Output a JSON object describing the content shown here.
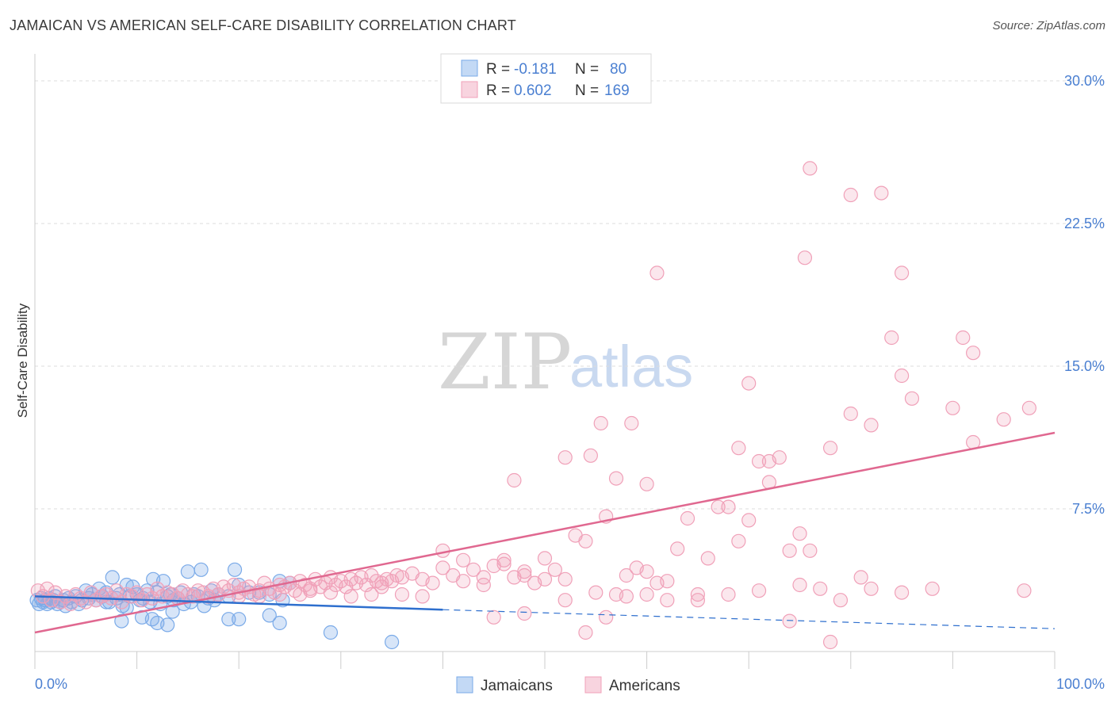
{
  "title": "JAMAICAN VS AMERICAN SELF-CARE DISABILITY CORRELATION CHART",
  "source": "Source: ZipAtlas.com",
  "watermark": {
    "part1": "ZIP",
    "part2": "atlas"
  },
  "colors": {
    "jamaicans": "#7aaae8",
    "jamaicans_fill": "rgba(122,170,232,0.30)",
    "jamaicans_line": "#2e6fce",
    "americans": "#f0a0b8",
    "americans_fill": "rgba(240,160,184,0.25)",
    "americans_line": "#e06890",
    "tick": "#4a7fd1",
    "grid": "#dddddd"
  },
  "legend_top": {
    "rows": [
      {
        "r_label": "R = ",
        "r_value": "-0.181",
        "n_label": "N = ",
        "n_value": "80"
      },
      {
        "r_label": "R = ",
        "r_value": "0.602",
        "n_label": "N = ",
        "n_value": "169"
      }
    ]
  },
  "chart_data": {
    "type": "scatter",
    "title": "JAMAICAN VS AMERICAN SELF-CARE DISABILITY CORRELATION CHART",
    "xlabel": "",
    "ylabel": "Self-Care Disability",
    "xlim": [
      0,
      100
    ],
    "ylim": [
      0,
      31
    ],
    "x_tick_labels": [
      "0.0%",
      "100.0%"
    ],
    "y_ticks": [
      7.5,
      15.0,
      22.5,
      30.0
    ],
    "y_tick_labels": [
      "7.5%",
      "15.0%",
      "22.5%",
      "30.0%"
    ],
    "grid": true,
    "legend": "top-center and bottom",
    "series": [
      {
        "name": "Jamaicans",
        "trend": {
          "x0": 0,
          "y0": 2.9,
          "x1": 40,
          "y1": 2.2,
          "dashed_to_x": 100,
          "dashed_to_y": 1.2
        },
        "points": [
          [
            0.2,
            2.7
          ],
          [
            0.4,
            2.5
          ],
          [
            0.6,
            2.8
          ],
          [
            0.8,
            2.6
          ],
          [
            1.0,
            2.7
          ],
          [
            1.2,
            2.5
          ],
          [
            1.4,
            2.8
          ],
          [
            1.6,
            2.6
          ],
          [
            1.8,
            2.7
          ],
          [
            2.0,
            2.9
          ],
          [
            2.2,
            2.5
          ],
          [
            2.5,
            2.6
          ],
          [
            2.8,
            2.7
          ],
          [
            3.0,
            2.4
          ],
          [
            3.3,
            2.8
          ],
          [
            3.6,
            2.6
          ],
          [
            4.0,
            2.9
          ],
          [
            4.3,
            2.5
          ],
          [
            4.6,
            2.7
          ],
          [
            5.0,
            3.2
          ],
          [
            5.3,
            2.8
          ],
          [
            5.6,
            3.0
          ],
          [
            6.0,
            2.7
          ],
          [
            6.3,
            3.3
          ],
          [
            6.6,
            2.9
          ],
          [
            7.0,
            3.1
          ],
          [
            7.3,
            2.6
          ],
          [
            7.6,
            3.9
          ],
          [
            8.0,
            2.8
          ],
          [
            8.3,
            3.0
          ],
          [
            8.6,
            2.4
          ],
          [
            9.0,
            3.5
          ],
          [
            9.3,
            2.9
          ],
          [
            9.6,
            3.4
          ],
          [
            10.0,
            3.0
          ],
          [
            10.3,
            2.7
          ],
          [
            10.6,
            2.8
          ],
          [
            11.0,
            3.2
          ],
          [
            11.3,
            2.6
          ],
          [
            11.6,
            3.8
          ],
          [
            12.0,
            3.1
          ],
          [
            12.3,
            2.5
          ],
          [
            12.6,
            3.7
          ],
          [
            13.0,
            2.9
          ],
          [
            13.3,
            3.0
          ],
          [
            13.6,
            2.7
          ],
          [
            14.0,
            2.8
          ],
          [
            14.3,
            3.1
          ],
          [
            14.6,
            2.5
          ],
          [
            15.0,
            4.2
          ],
          [
            15.3,
            2.6
          ],
          [
            15.6,
            3.0
          ],
          [
            16.0,
            2.9
          ],
          [
            16.3,
            4.3
          ],
          [
            16.6,
            2.4
          ],
          [
            17.0,
            2.8
          ],
          [
            17.3,
            3.2
          ],
          [
            17.6,
            2.7
          ],
          [
            18.0,
            3.0
          ],
          [
            19.0,
            2.9
          ],
          [
            19.6,
            4.3
          ],
          [
            20.0,
            3.5
          ],
          [
            21.0,
            3.1
          ],
          [
            22.0,
            3.1
          ],
          [
            23.0,
            3.0
          ],
          [
            24.0,
            3.7
          ],
          [
            24.3,
            2.7
          ],
          [
            25.0,
            3.6
          ],
          [
            8.5,
            1.6
          ],
          [
            10.5,
            1.8
          ],
          [
            11.5,
            1.7
          ],
          [
            12.0,
            1.5
          ],
          [
            13.0,
            1.4
          ],
          [
            13.5,
            2.1
          ],
          [
            9.0,
            2.3
          ],
          [
            19.0,
            1.7
          ],
          [
            20.0,
            1.7
          ],
          [
            23.0,
            1.9
          ],
          [
            24.0,
            1.5
          ],
          [
            29.0,
            1.0
          ],
          [
            35.0,
            0.5
          ],
          [
            7.0,
            2.6
          ]
        ]
      },
      {
        "name": "Americans",
        "trend": {
          "x0": 0,
          "y0": 1.0,
          "x1": 100,
          "y1": 11.5
        },
        "points": [
          [
            0.3,
            3.2
          ],
          [
            0.8,
            2.9
          ],
          [
            1.2,
            3.3
          ],
          [
            1.6,
            2.7
          ],
          [
            2.0,
            3.1
          ],
          [
            2.5,
            2.6
          ],
          [
            3.0,
            2.9
          ],
          [
            3.5,
            2.5
          ],
          [
            4.0,
            3.0
          ],
          [
            4.5,
            2.8
          ],
          [
            5.0,
            2.6
          ],
          [
            5.5,
            3.1
          ],
          [
            6.0,
            2.7
          ],
          [
            6.5,
            2.9
          ],
          [
            7.0,
            3.0
          ],
          [
            7.5,
            2.8
          ],
          [
            8.0,
            3.2
          ],
          [
            8.5,
            2.6
          ],
          [
            9.0,
            3.0
          ],
          [
            9.5,
            2.9
          ],
          [
            10.0,
            3.1
          ],
          [
            10.5,
            2.7
          ],
          [
            11.0,
            3.0
          ],
          [
            11.5,
            2.8
          ],
          [
            12.0,
            3.3
          ],
          [
            12.5,
            2.9
          ],
          [
            13.0,
            3.1
          ],
          [
            13.5,
            3.0
          ],
          [
            14.0,
            2.8
          ],
          [
            14.5,
            3.2
          ],
          [
            15.0,
            3.0
          ],
          [
            15.5,
            2.9
          ],
          [
            16.0,
            3.2
          ],
          [
            16.5,
            3.1
          ],
          [
            17.0,
            2.9
          ],
          [
            17.5,
            3.3
          ],
          [
            18.0,
            3.0
          ],
          [
            18.5,
            3.4
          ],
          [
            19.0,
            3.2
          ],
          [
            19.5,
            3.5
          ],
          [
            20.0,
            3.1
          ],
          [
            20.5,
            3.3
          ],
          [
            21.0,
            3.4
          ],
          [
            21.5,
            3.0
          ],
          [
            22.0,
            3.2
          ],
          [
            22.5,
            3.6
          ],
          [
            23.0,
            3.3
          ],
          [
            23.5,
            3.1
          ],
          [
            24.0,
            3.5
          ],
          [
            24.5,
            3.4
          ],
          [
            25.0,
            3.6
          ],
          [
            25.5,
            3.2
          ],
          [
            26.0,
            3.7
          ],
          [
            26.5,
            3.5
          ],
          [
            27.0,
            3.3
          ],
          [
            27.5,
            3.8
          ],
          [
            28.0,
            3.4
          ],
          [
            28.5,
            3.6
          ],
          [
            29.0,
            3.9
          ],
          [
            29.5,
            3.5
          ],
          [
            30.0,
            3.7
          ],
          [
            30.5,
            3.4
          ],
          [
            31.0,
            3.8
          ],
          [
            31.5,
            3.6
          ],
          [
            32.0,
            3.9
          ],
          [
            32.5,
            3.5
          ],
          [
            33.0,
            4.0
          ],
          [
            33.5,
            3.7
          ],
          [
            34.0,
            3.6
          ],
          [
            34.5,
            3.8
          ],
          [
            35.0,
            3.7
          ],
          [
            35.5,
            4.0
          ],
          [
            36.0,
            3.9
          ],
          [
            37.0,
            4.1
          ],
          [
            38.0,
            3.8
          ],
          [
            39.0,
            3.6
          ],
          [
            40.0,
            4.4
          ],
          [
            41.0,
            4.0
          ],
          [
            42.0,
            3.7
          ],
          [
            43.0,
            4.3
          ],
          [
            44.0,
            3.5
          ],
          [
            45.0,
            4.5
          ],
          [
            46.0,
            4.8
          ],
          [
            47.0,
            3.9
          ],
          [
            48.0,
            4.2
          ],
          [
            49.0,
            3.6
          ],
          [
            50.0,
            4.9
          ],
          [
            51.0,
            4.3
          ],
          [
            52.0,
            3.8
          ],
          [
            53.0,
            6.1
          ],
          [
            54.0,
            5.8
          ],
          [
            55.0,
            3.1
          ],
          [
            56.0,
            7.1
          ],
          [
            57.0,
            3.0
          ],
          [
            58.0,
            4.0
          ],
          [
            59.0,
            4.4
          ],
          [
            60.0,
            4.2
          ],
          [
            61.0,
            3.6
          ],
          [
            62.0,
            2.7
          ],
          [
            63.0,
            5.4
          ],
          [
            64.0,
            7.0
          ],
          [
            65.0,
            2.7
          ],
          [
            66.0,
            4.9
          ],
          [
            67.0,
            7.6
          ],
          [
            68.0,
            7.6
          ],
          [
            69.0,
            5.8
          ],
          [
            70.0,
            6.9
          ],
          [
            71.0,
            3.2
          ],
          [
            72.0,
            10.0
          ],
          [
            73.0,
            10.2
          ],
          [
            74.0,
            5.3
          ],
          [
            75.0,
            6.2
          ],
          [
            76.0,
            5.3
          ],
          [
            77.0,
            3.3
          ],
          [
            78.0,
            10.7
          ],
          [
            80.0,
            12.5
          ],
          [
            81.0,
            3.9
          ],
          [
            82.0,
            3.3
          ],
          [
            85.0,
            3.1
          ],
          [
            88.0,
            3.3
          ],
          [
            90.0,
            12.8
          ],
          [
            92.0,
            11.0
          ],
          [
            95.0,
            12.2
          ],
          [
            97.0,
            3.2
          ],
          [
            97.5,
            12.8
          ],
          [
            47.0,
            9.0
          ],
          [
            52.0,
            10.2
          ],
          [
            54.5,
            10.3
          ],
          [
            55.5,
            12.0
          ],
          [
            57.0,
            9.1
          ],
          [
            58.5,
            12.0
          ],
          [
            60.0,
            8.8
          ],
          [
            61.0,
            19.9
          ],
          [
            69.0,
            10.7
          ],
          [
            70.0,
            14.1
          ],
          [
            71.0,
            10.0
          ],
          [
            72.0,
            8.9
          ],
          [
            75.5,
            20.7
          ],
          [
            76.0,
            25.4
          ],
          [
            80.0,
            24.0
          ],
          [
            83.0,
            24.1
          ],
          [
            84.0,
            16.5
          ],
          [
            85.0,
            14.5
          ],
          [
            86.0,
            13.3
          ],
          [
            85.0,
            19.9
          ],
          [
            91.0,
            16.5
          ],
          [
            92.0,
            15.7
          ],
          [
            82.0,
            11.9
          ],
          [
            40.0,
            5.3
          ],
          [
            42.0,
            4.8
          ],
          [
            44.0,
            3.9
          ],
          [
            46.0,
            4.6
          ],
          [
            48.0,
            4.0
          ],
          [
            50.0,
            3.8
          ],
          [
            52.0,
            2.7
          ],
          [
            54.0,
            1.0
          ],
          [
            56.0,
            1.8
          ],
          [
            58.0,
            2.9
          ],
          [
            60.0,
            3.0
          ],
          [
            62.0,
            3.7
          ],
          [
            45.0,
            1.8
          ],
          [
            48.0,
            2.0
          ],
          [
            74.0,
            1.6
          ],
          [
            78.0,
            0.5
          ],
          [
            75.0,
            3.5
          ],
          [
            79.0,
            2.7
          ],
          [
            65.0,
            3.0
          ],
          [
            68.0,
            3.0
          ],
          [
            36.0,
            3.0
          ],
          [
            38.0,
            2.9
          ],
          [
            34.0,
            3.4
          ],
          [
            33.0,
            3.0
          ],
          [
            31.0,
            2.9
          ],
          [
            29.0,
            3.1
          ],
          [
            27.0,
            3.2
          ],
          [
            26.0,
            3.0
          ],
          [
            24.0,
            3.0
          ],
          [
            22.0,
            2.9
          ],
          [
            20.0,
            2.9
          ]
        ]
      }
    ]
  },
  "bottom_legend": {
    "jamaicans": "Jamaicans",
    "americans": "Americans"
  }
}
